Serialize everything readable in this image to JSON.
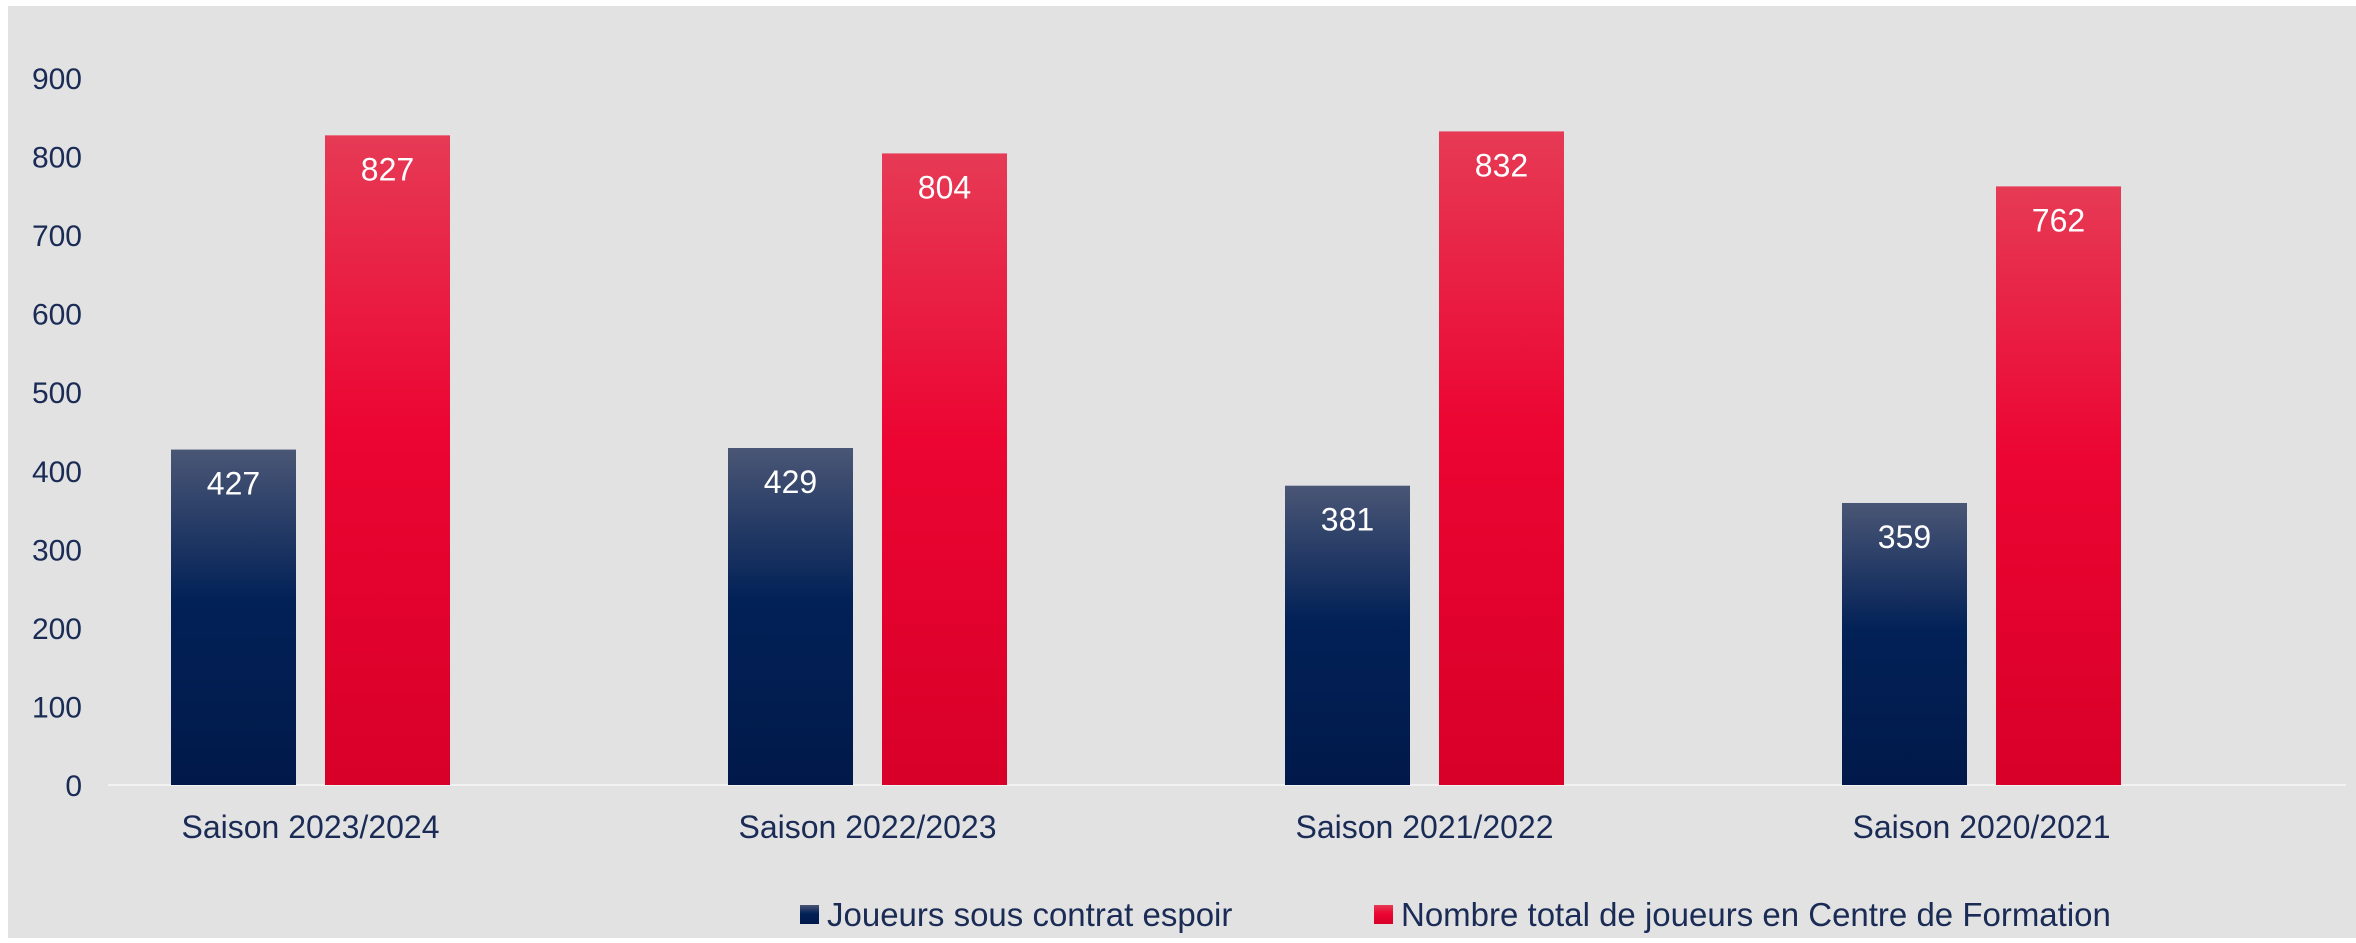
{
  "chart_data": {
    "type": "bar",
    "categories": [
      "Saison 2023/2024",
      "Saison 2022/2023",
      "Saison 2021/2022",
      "Saison 2020/2021"
    ],
    "series": [
      {
        "name": "Joueurs sous contrat espoir",
        "values": [
          427,
          429,
          381,
          359
        ],
        "color": "#022157"
      },
      {
        "name": "Nombre total de joueurs en Centre de Formation",
        "values": [
          827,
          804,
          832,
          762
        ],
        "color": "#e8002c"
      }
    ],
    "ylim": [
      0,
      900
    ],
    "yticks": [
      0,
      100,
      200,
      300,
      400,
      500,
      600,
      700,
      800,
      900
    ],
    "grid": false,
    "legend": "bottom",
    "background": "#e2e2e2",
    "title": "",
    "xlabel": "",
    "ylabel": ""
  }
}
